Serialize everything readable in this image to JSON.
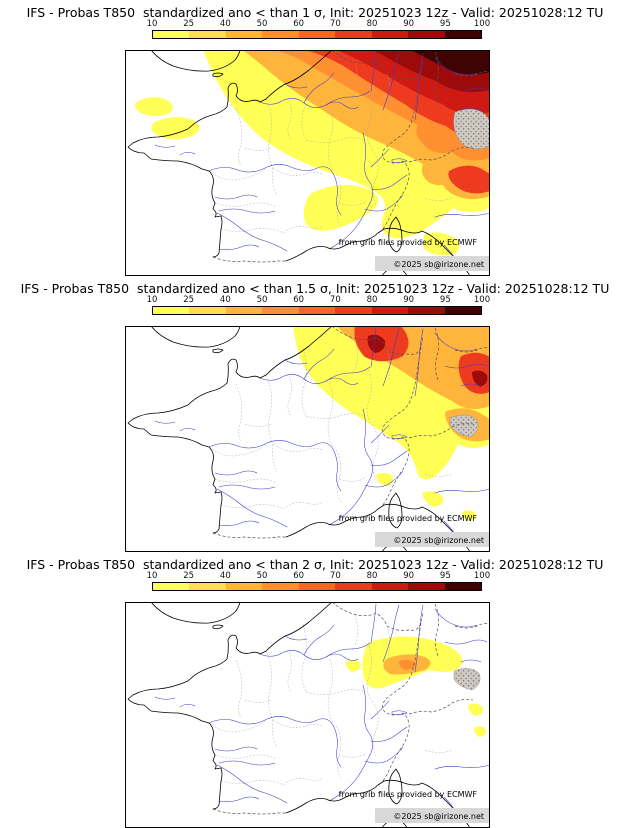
{
  "colorbar": {
    "ticks": [
      "10",
      "25",
      "40",
      "50",
      "60",
      "70",
      "80",
      "90",
      "95",
      "100"
    ],
    "colors": [
      "#ffff55",
      "#ffdf4e",
      "#ffb43c",
      "#ff8f30",
      "#fb6428",
      "#ee3b20",
      "#cf1a14",
      "#9d0a0a",
      "#3f0303"
    ]
  },
  "palette": {
    "yellow": "#ffff55",
    "orange": "#ffb43c",
    "deep_orange": "#ff8f30",
    "red": "#ee3b20",
    "dark_red": "#cf1a14",
    "maroon": "#9d0a0a",
    "near_black": "#3f0303",
    "terrain_gray": "#cfc9c4"
  },
  "panels": [
    {
      "title": "IFS - Probas T850  standardized ano < than 1 σ, Init: 20251023 12z - Valid: 20251028:12 TU",
      "credit_ecmwf": "from grib files provided by ECMWF",
      "credit_copyright": "©2025 sb@irizone.net"
    },
    {
      "title": "IFS - Probas T850  standardized ano < than 1.5 σ, Init: 20251023 12z - Valid: 20251028:12 TU",
      "credit_ecmwf": "from grib files provided by ECMWF",
      "credit_copyright": "©2025 sb@irizone.net"
    },
    {
      "title": "IFS - Probas T850  standardized ano < than 2 σ, Init: 20251023 12z - Valid: 20251028:12 TU",
      "credit_ecmwf": "from grib files provided by ECMWF",
      "credit_copyright": "©2025 sb@irizone.net"
    }
  ]
}
